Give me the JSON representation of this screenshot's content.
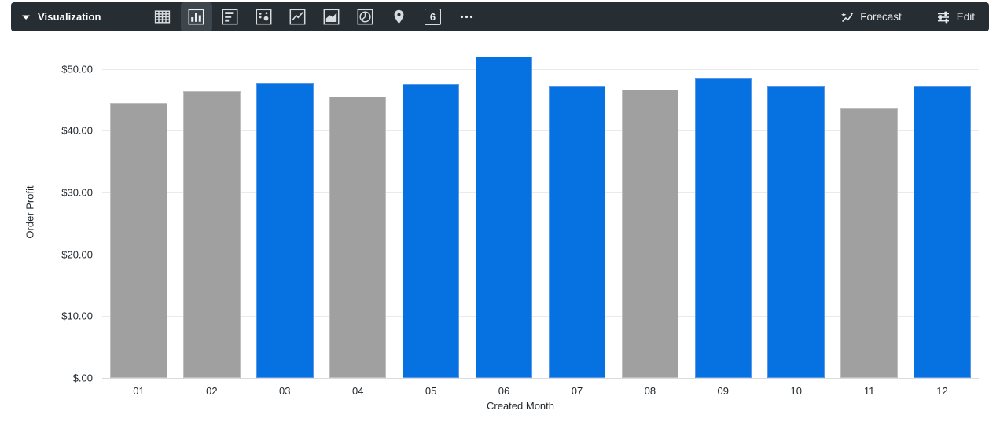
{
  "toolbar": {
    "section_label": "Visualization",
    "forecast_label": "Forecast",
    "edit_label": "Edit",
    "single_value_glyph": "6",
    "viz_types": [
      "table",
      "column",
      "bar",
      "scatter",
      "line",
      "area",
      "pie",
      "map",
      "single-value",
      "more"
    ],
    "selected_viz": "column",
    "colors": {
      "background": "#262D33",
      "selected_highlight": "#3E464D",
      "icon": "#D9DCDF",
      "text": "#E8EAED"
    }
  },
  "chart_data": {
    "type": "bar",
    "title": "",
    "xlabel": "Created Month",
    "ylabel": "Order Profit",
    "categories": [
      "01",
      "02",
      "03",
      "04",
      "05",
      "06",
      "07",
      "08",
      "09",
      "10",
      "11",
      "12"
    ],
    "values": [
      44.5,
      46.4,
      47.6,
      45.5,
      47.5,
      52.0,
      47.2,
      46.6,
      48.5,
      47.2,
      43.6,
      47.2
    ],
    "bar_color_keys": [
      "gray",
      "gray",
      "blue",
      "gray",
      "blue",
      "blue",
      "blue",
      "gray",
      "blue",
      "blue",
      "gray",
      "blue"
    ],
    "palette": {
      "blue": "#0672E2",
      "blue_edge": "#5A97E8",
      "gray": "#A0A0A0",
      "gray_edge": "#BCBEC0"
    },
    "ylim": [
      0,
      53.5
    ],
    "y_ticks": [
      {
        "value": 0,
        "label": "$.00"
      },
      {
        "value": 10,
        "label": "$10.00"
      },
      {
        "value": 20,
        "label": "$20.00"
      },
      {
        "value": 30,
        "label": "$30.00"
      },
      {
        "value": 40,
        "label": "$40.00"
      },
      {
        "value": 50,
        "label": "$50.00"
      }
    ],
    "grid": true,
    "legend": "none"
  }
}
